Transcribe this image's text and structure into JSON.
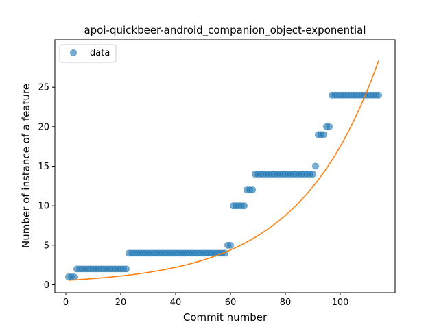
{
  "chart_data": {
    "type": "scatter",
    "title": "apoi-quickbeer-android_companion_object-exponential",
    "xlabel": "Commit number",
    "ylabel": "Number of instance of a feature",
    "xlim": [
      -4,
      120
    ],
    "ylim": [
      -1,
      31
    ],
    "xticks": [
      0,
      20,
      40,
      60,
      80,
      100
    ],
    "yticks": [
      0,
      5,
      10,
      15,
      20,
      25
    ],
    "legend": {
      "placement": "top-left",
      "entries": [
        "data"
      ]
    },
    "colors": {
      "data": "#1f77b4",
      "fit": "#ff7f0e"
    },
    "series": [
      {
        "name": "data",
        "kind": "scatter",
        "x": [
          1,
          2,
          3,
          4,
          5,
          6,
          7,
          8,
          9,
          10,
          11,
          12,
          13,
          14,
          15,
          16,
          17,
          18,
          19,
          20,
          21,
          22,
          23,
          24,
          25,
          26,
          27,
          28,
          29,
          30,
          31,
          32,
          33,
          34,
          35,
          36,
          37,
          38,
          39,
          40,
          41,
          42,
          43,
          44,
          45,
          46,
          47,
          48,
          49,
          50,
          51,
          52,
          53,
          54,
          55,
          56,
          57,
          58,
          59,
          60,
          61,
          62,
          63,
          64,
          65,
          66,
          67,
          68,
          69,
          70,
          71,
          72,
          73,
          74,
          75,
          76,
          77,
          78,
          79,
          80,
          81,
          82,
          83,
          84,
          85,
          86,
          87,
          88,
          89,
          90,
          91,
          92,
          93,
          94,
          95,
          96,
          97,
          98,
          99,
          100,
          101,
          102,
          103,
          104,
          105,
          106,
          107,
          108,
          109,
          110,
          111,
          112,
          113,
          114
        ],
        "y": [
          1,
          1,
          1,
          2,
          2,
          2,
          2,
          2,
          2,
          2,
          2,
          2,
          2,
          2,
          2,
          2,
          2,
          2,
          2,
          2,
          2,
          2,
          4,
          4,
          4,
          4,
          4,
          4,
          4,
          4,
          4,
          4,
          4,
          4,
          4,
          4,
          4,
          4,
          4,
          4,
          4,
          4,
          4,
          4,
          4,
          4,
          4,
          4,
          4,
          4,
          4,
          4,
          4,
          4,
          4,
          4,
          4,
          4,
          5,
          5,
          10,
          10,
          10,
          10,
          10,
          12,
          12,
          12,
          14,
          14,
          14,
          14,
          14,
          14,
          14,
          14,
          14,
          14,
          14,
          14,
          14,
          14,
          14,
          14,
          14,
          14,
          14,
          14,
          14,
          14,
          15,
          19,
          19,
          19,
          20,
          20,
          24,
          24,
          24,
          24,
          24,
          24,
          24,
          24,
          24,
          24,
          24,
          24,
          24,
          24,
          24,
          24,
          24,
          24
        ]
      },
      {
        "kind": "line",
        "model": "exponential",
        "a": 0.5556,
        "b": 0.0345,
        "x_range": [
          1,
          114
        ]
      }
    ]
  }
}
